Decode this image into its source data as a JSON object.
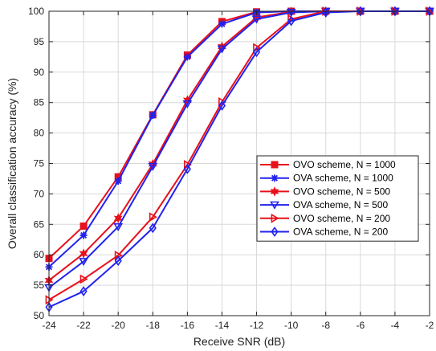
{
  "chart_data": {
    "type": "line",
    "title": "",
    "xlabel": "Receive SNR (dB)",
    "ylabel": "Overall classification accuracy (%)",
    "xlim": [
      -24,
      -2
    ],
    "ylim": [
      50,
      100
    ],
    "xticks": [
      -24,
      -22,
      -20,
      -18,
      -16,
      -14,
      -12,
      -10,
      -8,
      -6,
      -4,
      -2
    ],
    "yticks": [
      50,
      55,
      60,
      65,
      70,
      75,
      80,
      85,
      90,
      95,
      100
    ],
    "grid": true,
    "legend_position": "right",
    "x": [
      -24,
      -22,
      -20,
      -18,
      -16,
      -14,
      -12,
      -10,
      -8,
      -6,
      -4,
      -2
    ],
    "series": [
      {
        "name": "OVO scheme, N = 1000",
        "color": "#e8101a",
        "marker": "square",
        "values": [
          59.4,
          64.7,
          72.8,
          83.0,
          92.8,
          98.3,
          99.9,
          100,
          100,
          100,
          100,
          100
        ]
      },
      {
        "name": "OVA scheme, N = 1000",
        "color": "#2222ee",
        "marker": "star",
        "values": [
          58.0,
          63.2,
          72.1,
          82.9,
          92.5,
          97.9,
          99.8,
          100,
          100,
          100,
          100,
          100
        ]
      },
      {
        "name": "OVO scheme, N = 500",
        "color": "#e8101a",
        "marker": "hexagram",
        "values": [
          55.8,
          60.2,
          66.0,
          74.9,
          85.4,
          94.2,
          99.0,
          99.9,
          100,
          100,
          100,
          100
        ]
      },
      {
        "name": "OVA scheme, N = 500",
        "color": "#2222ee",
        "marker": "triangle-down",
        "values": [
          54.6,
          58.9,
          64.6,
          74.5,
          84.8,
          93.8,
          98.7,
          99.8,
          100,
          100,
          100,
          100
        ]
      },
      {
        "name": "OVO scheme, N = 200",
        "color": "#e8101a",
        "marker": "triangle-right",
        "values": [
          52.6,
          56.0,
          59.9,
          66.2,
          74.8,
          85.1,
          94.0,
          98.7,
          100,
          100,
          100,
          100
        ]
      },
      {
        "name": "OVA scheme, N = 200",
        "color": "#2222ee",
        "marker": "diamond",
        "values": [
          51.4,
          54.0,
          59.0,
          64.4,
          74.1,
          84.5,
          93.3,
          98.4,
          99.8,
          100,
          100,
          100
        ]
      }
    ]
  }
}
